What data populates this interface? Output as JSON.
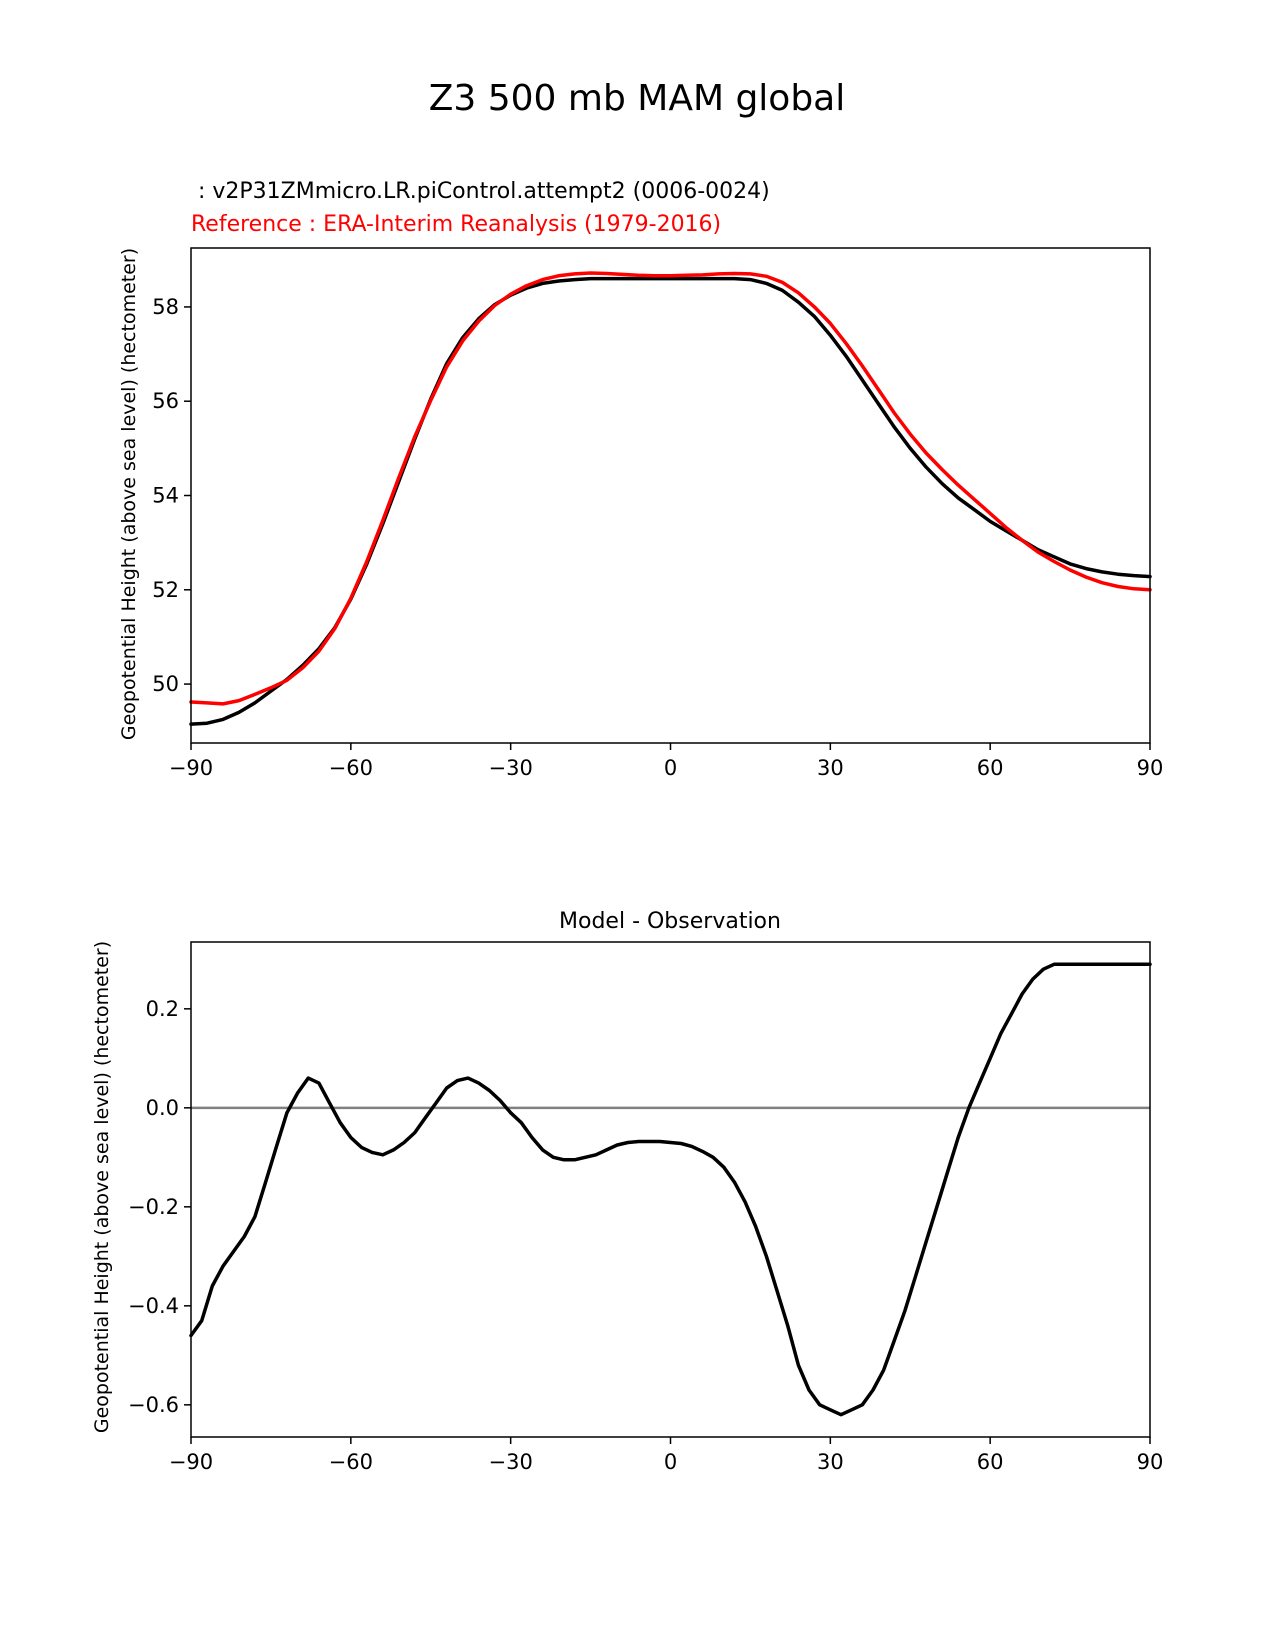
{
  "figure": {
    "title": "Z3 500 mb MAM global"
  },
  "chart_data": [
    {
      "type": "line",
      "test_label": " : v2P31ZMmicro.LR.piControl.attempt2 (0006-0024)",
      "ref_label": "Reference : ERA-Interim Reanalysis (1979-2016)",
      "xlabel": "",
      "ylabel": "Geopotential Height (above sea level) (hectometer)",
      "xlim": [
        -90,
        90
      ],
      "ylim": [
        48.75,
        59.25
      ],
      "xticks": [
        -90,
        -60,
        -30,
        0,
        30,
        60,
        90
      ],
      "xtick_labels": [
        "−90",
        "−60",
        "−30",
        "0",
        "30",
        "60",
        "90"
      ],
      "yticks": [
        50,
        52,
        54,
        56,
        58
      ],
      "ytick_labels": [
        "50",
        "52",
        "54",
        "56",
        "58"
      ],
      "grid": false,
      "series": [
        {
          "color": "#000000",
          "x": [
            -90,
            -87,
            -84,
            -81,
            -78,
            -75,
            -72,
            -69,
            -66,
            -63,
            -60,
            -57,
            -54,
            -51,
            -48,
            -45,
            -42,
            -39,
            -36,
            -33,
            -30,
            -27,
            -24,
            -21,
            -18,
            -15,
            -12,
            -9,
            -6,
            -3,
            0,
            3,
            6,
            9,
            12,
            15,
            18,
            21,
            24,
            27,
            30,
            33,
            36,
            39,
            42,
            45,
            48,
            51,
            54,
            57,
            60,
            63,
            66,
            69,
            72,
            75,
            78,
            81,
            84,
            87,
            90
          ],
          "y": [
            49.15,
            49.17,
            49.25,
            49.4,
            49.6,
            49.85,
            50.1,
            50.4,
            50.75,
            51.2,
            51.8,
            52.55,
            53.4,
            54.3,
            55.2,
            56.05,
            56.8,
            57.35,
            57.75,
            58.05,
            58.25,
            58.4,
            58.5,
            58.55,
            58.58,
            58.6,
            58.6,
            58.6,
            58.6,
            58.6,
            58.6,
            58.6,
            58.6,
            58.6,
            58.6,
            58.58,
            58.5,
            58.35,
            58.1,
            57.8,
            57.4,
            56.95,
            56.45,
            55.95,
            55.45,
            55.0,
            54.6,
            54.25,
            53.95,
            53.7,
            53.45,
            53.25,
            53.05,
            52.85,
            52.7,
            52.55,
            52.45,
            52.38,
            52.33,
            52.3,
            52.28
          ]
        },
        {
          "color": "#ff0000",
          "x": [
            -90,
            -87,
            -84,
            -81,
            -78,
            -75,
            -72,
            -69,
            -66,
            -63,
            -60,
            -57,
            -54,
            -51,
            -48,
            -45,
            -42,
            -39,
            -36,
            -33,
            -30,
            -27,
            -24,
            -21,
            -18,
            -15,
            -12,
            -9,
            -6,
            -3,
            0,
            3,
            6,
            9,
            12,
            15,
            18,
            21,
            24,
            27,
            30,
            33,
            36,
            39,
            42,
            45,
            48,
            51,
            54,
            57,
            60,
            63,
            66,
            69,
            72,
            75,
            78,
            81,
            84,
            87,
            90
          ],
          "y": [
            49.62,
            49.6,
            49.58,
            49.65,
            49.78,
            49.92,
            50.08,
            50.35,
            50.7,
            51.18,
            51.82,
            52.6,
            53.47,
            54.38,
            55.25,
            56.02,
            56.73,
            57.28,
            57.7,
            58.03,
            58.27,
            58.45,
            58.58,
            58.66,
            58.7,
            58.72,
            58.71,
            58.69,
            58.67,
            58.66,
            58.66,
            58.67,
            58.68,
            58.7,
            58.71,
            58.7,
            58.65,
            58.52,
            58.3,
            58.0,
            57.65,
            57.22,
            56.75,
            56.25,
            55.75,
            55.3,
            54.9,
            54.55,
            54.22,
            53.92,
            53.62,
            53.32,
            53.05,
            52.8,
            52.6,
            52.42,
            52.27,
            52.15,
            52.07,
            52.02,
            52.0
          ]
        }
      ]
    },
    {
      "type": "line",
      "title": "Model - Observation",
      "xlabel": "",
      "ylabel": "Geopotential Height (above sea level) (hectometer)",
      "xlim": [
        -90,
        90
      ],
      "ylim": [
        -0.665,
        0.335
      ],
      "xticks": [
        -90,
        -60,
        -30,
        0,
        30,
        60,
        90
      ],
      "xtick_labels": [
        "−90",
        "−60",
        "−30",
        "0",
        "30",
        "60",
        "90"
      ],
      "yticks": [
        -0.6,
        -0.4,
        -0.2,
        0.0,
        0.2
      ],
      "ytick_labels": [
        "−0.6",
        "−0.4",
        "−0.2",
        "0.0",
        "0.2"
      ],
      "grid": false,
      "zero_line_color": "#808080",
      "series": [
        {
          "color": "#000000",
          "x": [
            -90,
            -88,
            -86,
            -84,
            -82,
            -80,
            -78,
            -76,
            -74,
            -72,
            -70,
            -68,
            -66,
            -64,
            -62,
            -60,
            -58,
            -56,
            -54,
            -52,
            -50,
            -48,
            -46,
            -44,
            -42,
            -40,
            -38,
            -36,
            -34,
            -32,
            -30,
            -28,
            -26,
            -24,
            -22,
            -20,
            -18,
            -16,
            -14,
            -12,
            -10,
            -8,
            -6,
            -4,
            -2,
            0,
            2,
            4,
            6,
            8,
            10,
            12,
            14,
            16,
            18,
            20,
            22,
            24,
            26,
            28,
            30,
            32,
            34,
            36,
            38,
            40,
            42,
            44,
            46,
            48,
            50,
            52,
            54,
            56,
            58,
            60,
            62,
            64,
            66,
            68,
            70,
            72,
            74,
            76,
            78,
            80,
            82,
            84,
            86,
            88,
            90
          ],
          "y": [
            -0.46,
            -0.43,
            -0.36,
            -0.32,
            -0.29,
            -0.26,
            -0.22,
            -0.15,
            -0.08,
            -0.01,
            0.03,
            0.06,
            0.05,
            0.01,
            -0.03,
            -0.06,
            -0.08,
            -0.09,
            -0.095,
            -0.085,
            -0.07,
            -0.05,
            -0.02,
            0.01,
            0.04,
            0.055,
            0.06,
            0.05,
            0.035,
            0.015,
            -0.01,
            -0.03,
            -0.06,
            -0.085,
            -0.1,
            -0.105,
            -0.105,
            -0.1,
            -0.095,
            -0.085,
            -0.075,
            -0.07,
            -0.068,
            -0.068,
            -0.068,
            -0.07,
            -0.072,
            -0.078,
            -0.088,
            -0.1,
            -0.12,
            -0.15,
            -0.19,
            -0.24,
            -0.3,
            -0.37,
            -0.44,
            -0.52,
            -0.57,
            -0.6,
            -0.61,
            -0.62,
            -0.61,
            -0.6,
            -0.57,
            -0.53,
            -0.47,
            -0.41,
            -0.34,
            -0.27,
            -0.2,
            -0.13,
            -0.06,
            0.0,
            0.05,
            0.1,
            0.15,
            0.19,
            0.23,
            0.26,
            0.28,
            0.29,
            0.29,
            0.29,
            0.29,
            0.29,
            0.29,
            0.29,
            0.29,
            0.29,
            0.29
          ]
        }
      ]
    }
  ]
}
